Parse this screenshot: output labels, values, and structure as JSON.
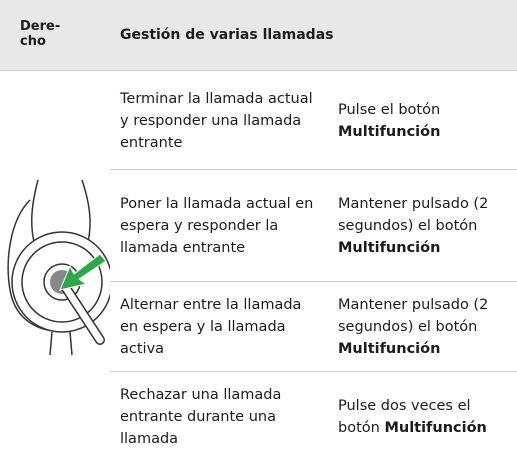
{
  "header": {
    "side": "Dere-\ncho",
    "title": "Gestión de varias llamadas"
  },
  "rows": [
    {
      "action": "Terminar la llamada actual y responder una llamada entrante",
      "instruction": {
        "text": "Pulse el botón",
        "bold": "Multifunción"
      }
    },
    {
      "action": "Poner la llamada actual en espera y responder la llamada entrante",
      "instruction": {
        "text": "Mantener pulsado (2 segundos) el botón",
        "bold": "Multifunción"
      }
    },
    {
      "action": "Alternar entre la llamada en espera y la llamada activa",
      "instruction": {
        "text": "Mantener pulsado (2 segundos) el botón",
        "bold": "Multifunción"
      }
    },
    {
      "action": "Rechazar una llamada entrante durante una llamada",
      "instruction": {
        "text": "Pulse dos veces el botón",
        "bold": "Multifunción"
      }
    }
  ]
}
